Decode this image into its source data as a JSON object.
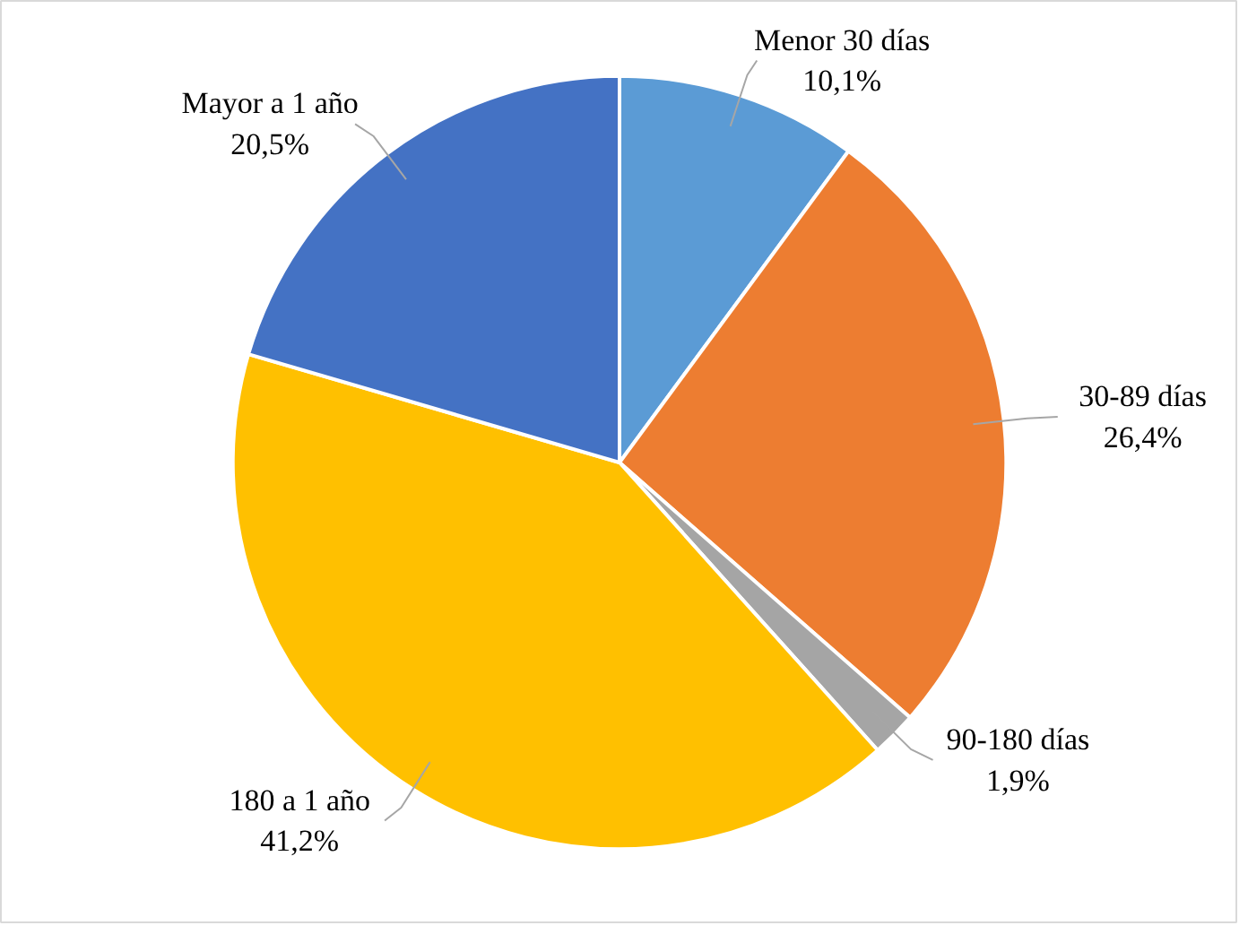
{
  "chart_data": {
    "type": "pie",
    "categories": [
      "Menor 30 días",
      "30-89 días",
      "90-180 días",
      "180 a 1 año",
      "Mayor a 1 año"
    ],
    "values": [
      10.1,
      26.4,
      1.9,
      41.2,
      20.5
    ],
    "value_labels": [
      "10,1%",
      "26,4%",
      "1,9%",
      "41,2%",
      "20,5%"
    ],
    "colors": [
      "#5b9bd5",
      "#ed7d31",
      "#a5a5a5",
      "#ffc000",
      "#4472c4"
    ]
  }
}
